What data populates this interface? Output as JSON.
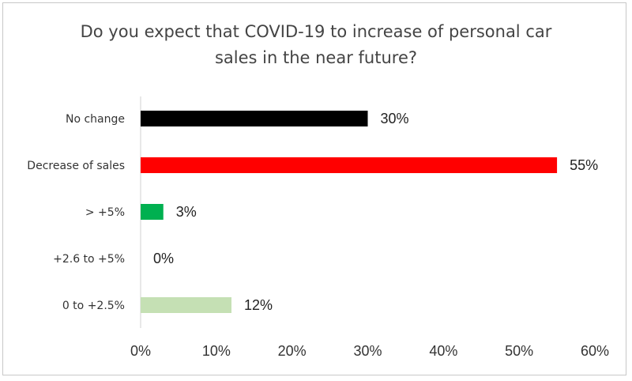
{
  "chart_data": {
    "type": "bar",
    "orientation": "horizontal",
    "title_line1": "Do you expect that COVID-19 to increase of personal car",
    "title_line2": "sales in the near future?",
    "categories": [
      "No change",
      "Decrease of sales",
      ">  +5%",
      "+2.6 to +5%",
      "0  to +2.5%"
    ],
    "values": [
      30,
      55,
      3,
      0,
      12
    ],
    "value_labels": [
      "30%",
      "55%",
      "3%",
      "0%",
      "12%"
    ],
    "colors": [
      "#000000",
      "#ff0000",
      "#00b050",
      "#00b050",
      "#c5e0b4"
    ],
    "xlim": [
      0,
      60
    ],
    "xticks": [
      0,
      10,
      20,
      30,
      40,
      50,
      60
    ],
    "xtick_labels": [
      "0%",
      "10%",
      "20%",
      "30%",
      "40%",
      "50%",
      "60%"
    ],
    "grid": false,
    "legend": "none"
  }
}
